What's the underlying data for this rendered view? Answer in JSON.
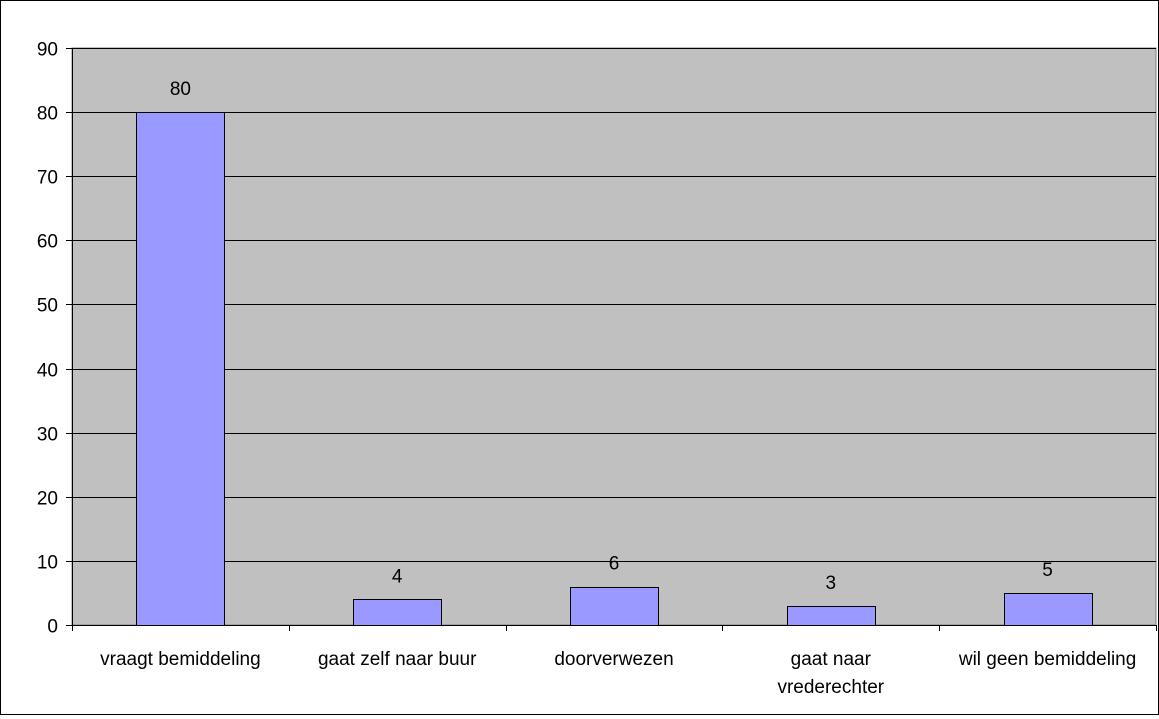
{
  "chart_data": {
    "type": "bar",
    "categories": [
      [
        "vraagt bemiddeling"
      ],
      [
        "gaat zelf naar buur"
      ],
      [
        "doorverwezen"
      ],
      [
        "gaat naar",
        "vrederechter"
      ],
      [
        "wil geen bemiddeling"
      ]
    ],
    "values": [
      80,
      4,
      6,
      3,
      5
    ],
    "data_labels": [
      "80",
      "4",
      "6",
      "3",
      "5"
    ],
    "yticks": [
      "0",
      "10",
      "20",
      "30",
      "40",
      "50",
      "60",
      "70",
      "80",
      "90"
    ],
    "ylim": [
      0,
      90
    ],
    "grid": true,
    "legend": "none",
    "colors": {
      "plot_background": "#c0c0c0",
      "bar_fill": "#9999ff",
      "bar_stroke": "#000000",
      "gridline": "#000000"
    }
  }
}
